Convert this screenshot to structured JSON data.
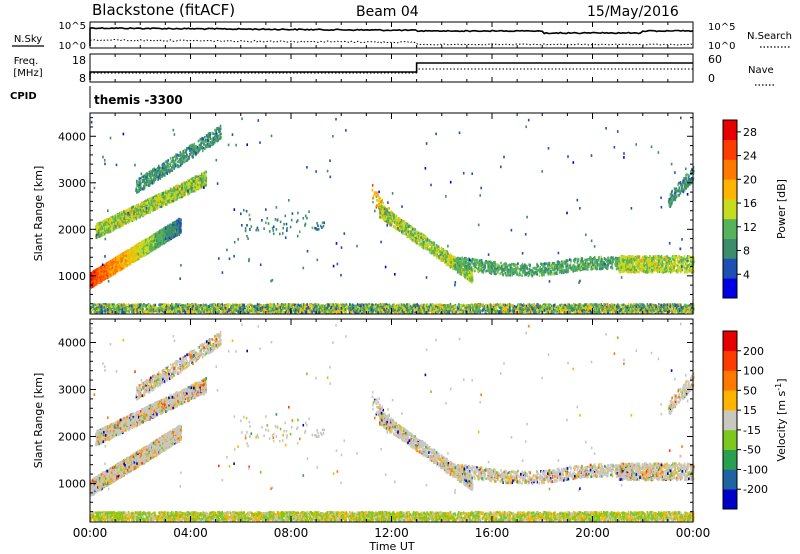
{
  "header": {
    "station": "Blackstone (fitACF)",
    "beam": "Beam 04",
    "date": "15/May/2016"
  },
  "panels": {
    "nsky_label": "N.Sky",
    "nsearch_label": "N.Search",
    "freq_label": "Freq.",
    "freq_unit": "[MHz]",
    "nave_label": "Nave",
    "cpid_label": "CPID",
    "cpid_value": "themis -3300",
    "nsky_ticks": [
      "10^5",
      "10^0"
    ],
    "nsearch_ticks": [
      "10^5",
      "10^0"
    ],
    "freq_ticks": [
      "18",
      "8"
    ],
    "nave_ticks": [
      "60",
      "0"
    ]
  },
  "chart_data": [
    {
      "type": "heatmap",
      "title": "",
      "xlabel": "Time UT",
      "ylabel": "Slant Range [km]",
      "xlim": [
        0,
        24
      ],
      "ylim": [
        180,
        4500
      ],
      "x_ticks": [
        "00:00",
        "04:00",
        "08:00",
        "12:00",
        "16:00",
        "20:00",
        "00:00"
      ],
      "y_ticks": [
        1000,
        2000,
        3000,
        4000
      ],
      "colorbar": {
        "label": "Power [dB]",
        "ticks": [
          4,
          8,
          12,
          16,
          20,
          24,
          28
        ],
        "range": [
          0,
          30
        ],
        "colors": [
          "#0000e6",
          "#1e50b4",
          "#3c8c6e",
          "#55b45a",
          "#c8dc1e",
          "#ffb400",
          "#ff7800",
          "#ff3c00",
          "#e60000"
        ]
      }
    },
    {
      "type": "heatmap",
      "title": "",
      "xlabel": "Time UT",
      "ylabel": "Slant Range [km]",
      "xlim": [
        0,
        24
      ],
      "ylim": [
        180,
        4500
      ],
      "x_ticks": [
        "00:00",
        "04:00",
        "08:00",
        "12:00",
        "16:00",
        "20:00",
        "00:00"
      ],
      "y_ticks": [
        1000,
        2000,
        3000,
        4000
      ],
      "colorbar": {
        "label": "Velocity [m s^-1]",
        "ticks": [
          200,
          100,
          50,
          15,
          -15,
          -50,
          -100,
          -200
        ],
        "colors": [
          "#0000c8",
          "#1e64a0",
          "#28a050",
          "#7dc81e",
          "#c8c8c0",
          "#ffb400",
          "#ff7800",
          "#ff3c00",
          "#e60000"
        ]
      }
    }
  ]
}
